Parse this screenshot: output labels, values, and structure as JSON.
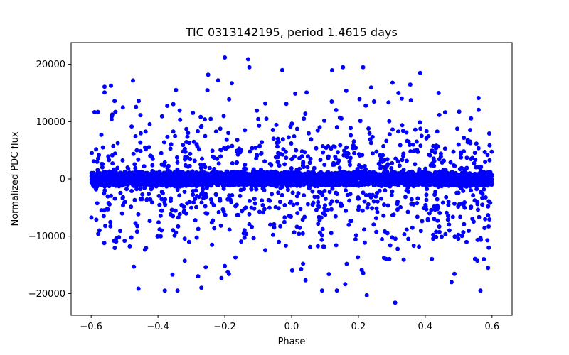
{
  "chart_data": {
    "type": "scatter",
    "title": "TIC 0313142195, period 1.4615 days",
    "xlabel": "Phase",
    "ylabel": "Normalized PDC flux",
    "xlim": [
      -0.66,
      0.66
    ],
    "ylim": [
      -23800,
      23800
    ],
    "xticks": [
      -0.6,
      -0.4,
      -0.2,
      0.0,
      0.2,
      0.4,
      0.6
    ],
    "xtick_labels": [
      "−0.6",
      "−0.4",
      "−0.2",
      "0.0",
      "0.2",
      "0.4",
      "0.6"
    ],
    "yticks": [
      -20000,
      -10000,
      0,
      10000,
      20000
    ],
    "ytick_labels": [
      "−20000",
      "−10000",
      "0",
      "10000",
      "20000"
    ],
    "series": [
      {
        "name": "flux",
        "color": "#0000ff",
        "marker": "circle",
        "core_band": {
          "x_range": [
            -0.6,
            0.6
          ],
          "y_halfwidth": 1400,
          "count": 3500
        },
        "scatter_points": {
          "x_range": [
            -0.6,
            0.6
          ],
          "count": 900,
          "y_sigma": 7000
        },
        "notable_points": [
          {
            "x": -0.2,
            "y": 21200
          },
          {
            "x": -0.13,
            "y": 20900
          },
          {
            "x": -0.25,
            "y": 18200
          },
          {
            "x": -0.56,
            "y": 15100
          },
          {
            "x": 0.045,
            "y": 15100
          },
          {
            "x": -0.53,
            "y": 13600
          },
          {
            "x": -0.22,
            "y": 17200
          },
          {
            "x": 0.32,
            "y": 15000
          },
          {
            "x": 0.44,
            "y": 15000
          },
          {
            "x": -0.58,
            "y": 11700
          },
          {
            "x": -0.27,
            "y": -19000
          },
          {
            "x": -0.28,
            "y": -17000
          },
          {
            "x": -0.21,
            "y": -17300
          },
          {
            "x": 0.21,
            "y": -15900
          },
          {
            "x": 0.225,
            "y": -20300
          },
          {
            "x": 0.31,
            "y": -21600
          },
          {
            "x": -0.5,
            "y": -10800
          },
          {
            "x": -0.32,
            "y": -14300
          },
          {
            "x": -0.2,
            "y": -15200
          },
          {
            "x": 0.59,
            "y": -8300
          }
        ]
      }
    ]
  }
}
